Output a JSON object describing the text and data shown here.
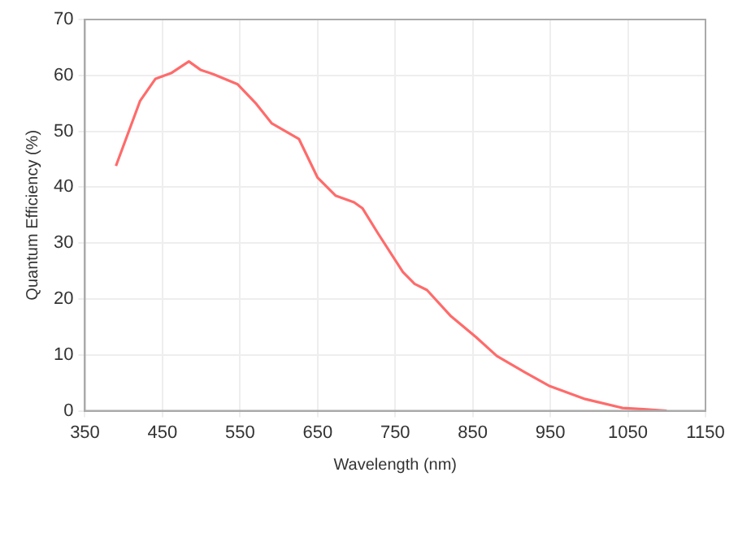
{
  "chart_data": {
    "type": "line",
    "xlabel": "Wavelength (nm)",
    "ylabel": "Quantum Efficiency (%)",
    "x": [
      390,
      421,
      441,
      461,
      484,
      499,
      516,
      547,
      571,
      591,
      626,
      650,
      673,
      697,
      708,
      728,
      760,
      775,
      791,
      822,
      854,
      881,
      917,
      948,
      995,
      1043,
      1070,
      1100
    ],
    "series": [
      {
        "color": "#ff6b6b",
        "values": [
          43.8,
          55.4,
          59.4,
          60.4,
          62.5,
          61,
          60.2,
          58.4,
          54.9,
          51.4,
          48.6,
          41.7,
          38.5,
          37.3,
          36.2,
          31.7,
          24.8,
          22.7,
          21.6,
          16.9,
          13.2,
          9.8,
          6.9,
          4.5,
          2.1,
          0.5,
          0.3,
          0
        ]
      }
    ],
    "xlim": [
      350,
      1150
    ],
    "xticks": [
      350,
      450,
      550,
      650,
      750,
      850,
      950,
      1050,
      1150
    ],
    "ylim": [
      0,
      70
    ],
    "yticks": [
      0,
      10,
      20,
      30,
      40,
      50,
      60,
      70
    ],
    "grid": true,
    "legend": false,
    "marker": "none",
    "line_style": "solid"
  }
}
